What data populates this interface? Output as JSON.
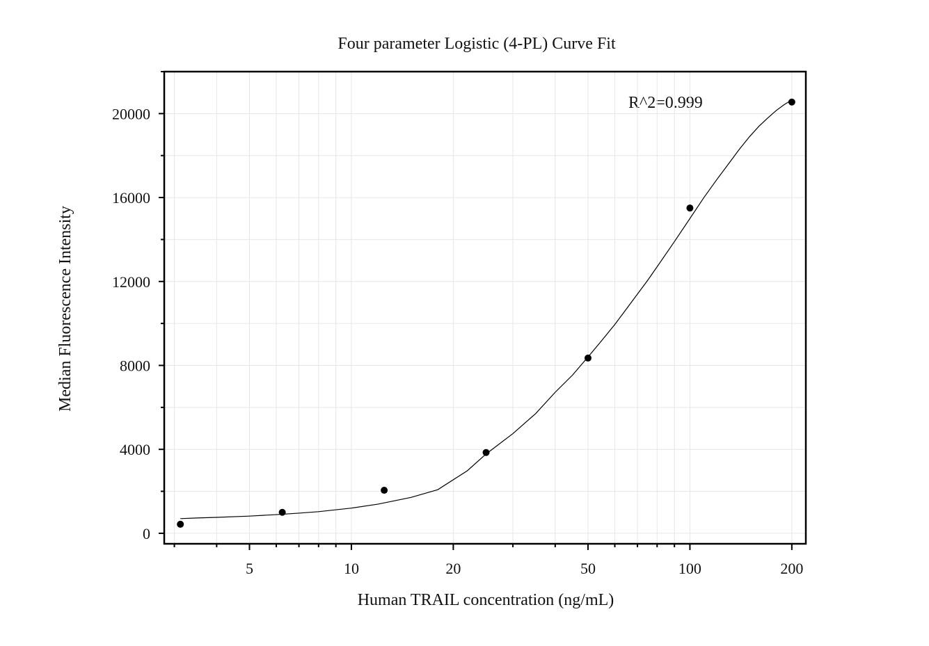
{
  "chart_data": {
    "type": "scatter",
    "title": "Four parameter Logistic (4-PL) Curve Fit",
    "xlabel": "Human TRAIL concentration (ng/mL)",
    "ylabel": "Median Fluorescence Intensity",
    "x_scale": "log",
    "xlim": [
      2.8,
      220
    ],
    "ylim": [
      -500,
      22000
    ],
    "x_tick_labels": [
      "5",
      "10",
      "20",
      "50",
      "100",
      "200"
    ],
    "x_tick_values": [
      5,
      10,
      20,
      50,
      100,
      200
    ],
    "y_tick_labels": [
      "0",
      "4000",
      "8000",
      "12000",
      "16000",
      "20000"
    ],
    "y_tick_values": [
      0,
      4000,
      8000,
      12000,
      16000,
      20000
    ],
    "grid": true,
    "annotation": "R^2=0.999",
    "series": [
      {
        "x": [
          3.125,
          6.25,
          12.5,
          25,
          50,
          100,
          200
        ],
        "y": [
          430,
          1000,
          2050,
          3850,
          8350,
          15500,
          20550
        ]
      }
    ],
    "fit": {
      "model": "4PL",
      "x": [
        3.125,
        3.5,
        4,
        5,
        6,
        7,
        8,
        10,
        12,
        15,
        18,
        22,
        25,
        30,
        35,
        40,
        45,
        50,
        55,
        60,
        65,
        70,
        75,
        80,
        90,
        100,
        110,
        120,
        130,
        140,
        150,
        160,
        170,
        180,
        190,
        200
      ],
      "y": [
        700,
        730,
        760,
        820,
        890,
        960,
        1030,
        1200,
        1390,
        1710,
        2080,
        2980,
        3780,
        4750,
        5700,
        6720,
        7540,
        8400,
        9200,
        9950,
        10700,
        11400,
        12050,
        12700,
        13900,
        15000,
        16000,
        16850,
        17600,
        18300,
        18900,
        19400,
        19800,
        20150,
        20430,
        20650
      ]
    },
    "colors": {
      "points": "#000000",
      "curve": "#000000",
      "grid": "#e6e6e6",
      "frame": "#000000"
    }
  }
}
